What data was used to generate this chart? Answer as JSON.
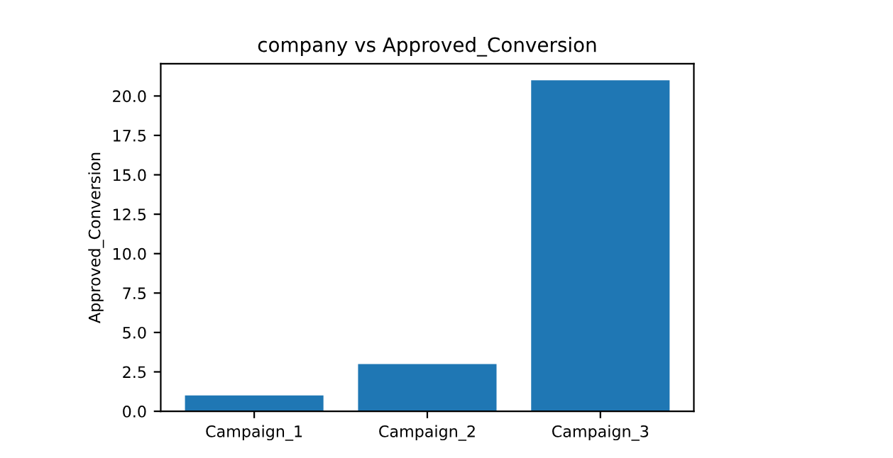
{
  "chart_data": {
    "type": "bar",
    "title": "company vs Approved_Conversion",
    "ylabel": "Approved_Conversion",
    "categories": [
      "Campaign_1",
      "Campaign_2",
      "Campaign_3"
    ],
    "values": [
      1,
      3,
      21
    ],
    "color": "#1f77b4",
    "ylim": [
      0,
      22.05
    ],
    "yticks": [
      {
        "value": 0,
        "label": "0.0"
      },
      {
        "value": 2.5,
        "label": "2.5"
      },
      {
        "value": 5,
        "label": "5.0"
      },
      {
        "value": 7.5,
        "label": "7.5"
      },
      {
        "value": 10,
        "label": "10.0"
      },
      {
        "value": 12.5,
        "label": "12.5"
      },
      {
        "value": 15,
        "label": "15.0"
      },
      {
        "value": 17.5,
        "label": "17.5"
      },
      {
        "value": 20,
        "label": "20.0"
      }
    ],
    "grid": false
  }
}
